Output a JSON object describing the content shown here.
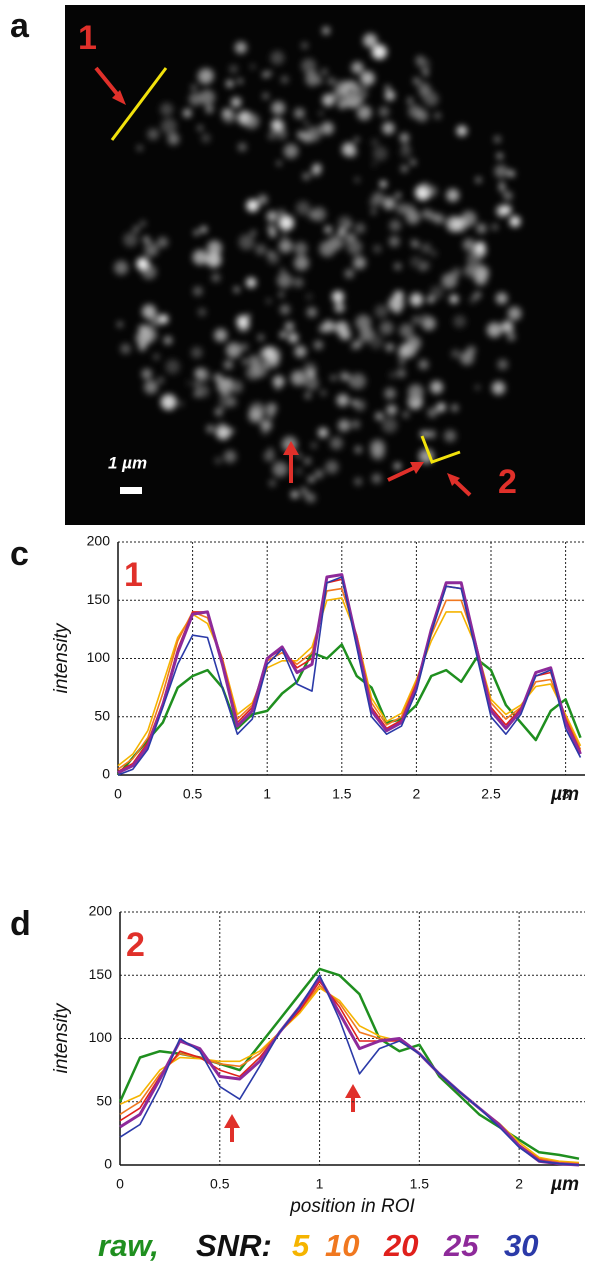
{
  "image": {
    "label": "a",
    "roi_labels": [
      "1",
      "2"
    ],
    "scale_bar": "1 µm"
  },
  "chart_data": [
    {
      "type": "line",
      "panel_label": "c",
      "roi_label": "1",
      "y_label": "intensity",
      "x_unit": "µm",
      "x": [
        0,
        0.1,
        0.2,
        0.3,
        0.4,
        0.5,
        0.6,
        0.7,
        0.8,
        0.9,
        1,
        1.1,
        1.2,
        1.3,
        1.4,
        1.5,
        1.6,
        1.7,
        1.8,
        1.9,
        2,
        2.1,
        2.2,
        2.3,
        2.4,
        2.5,
        2.6,
        2.7,
        2.8,
        2.9,
        3,
        3.1
      ],
      "xlim": [
        0,
        3.13
      ],
      "xticks": [
        0,
        0.5,
        1,
        1.5,
        2,
        2.5,
        3
      ],
      "ylim": [
        0,
        200
      ],
      "yticks": [
        0,
        50,
        100,
        150,
        200
      ],
      "grid": true,
      "series": [
        {
          "name": "raw,",
          "color": "#1f8f1f",
          "values": [
            0,
            15,
            30,
            45,
            75,
            85,
            90,
            75,
            40,
            52,
            55,
            70,
            80,
            105,
            100,
            112,
            85,
            75,
            45,
            48,
            60,
            85,
            90,
            80,
            100,
            90,
            60,
            45,
            30,
            55,
            65,
            32
          ]
        },
        {
          "name": "5",
          "color": "#f5b400",
          "values": [
            8,
            18,
            38,
            78,
            118,
            138,
            130,
            100,
            52,
            62,
            92,
            98,
            98,
            110,
            150,
            152,
            120,
            66,
            46,
            53,
            82,
            115,
            140,
            140,
            110,
            65,
            52,
            60,
            76,
            78,
            52,
            25
          ]
        },
        {
          "name": "10",
          "color": "#f07820",
          "values": [
            5,
            14,
            32,
            70,
            115,
            140,
            135,
            100,
            48,
            60,
            98,
            105,
            95,
            105,
            158,
            160,
            120,
            62,
            43,
            50,
            80,
            120,
            150,
            150,
            112,
            62,
            48,
            58,
            80,
            82,
            50,
            22
          ]
        },
        {
          "name": "20",
          "color": "#e0201c",
          "values": [
            3,
            10,
            28,
            62,
            108,
            140,
            140,
            98,
            45,
            58,
            100,
            108,
            92,
            100,
            165,
            168,
            118,
            58,
            40,
            47,
            78,
            125,
            162,
            160,
            112,
            58,
            43,
            57,
            85,
            88,
            48,
            20
          ]
        },
        {
          "name": "25",
          "color": "#8e2a9a",
          "values": [
            2,
            8,
            25,
            60,
            105,
            138,
            140,
            95,
            42,
            55,
            100,
            110,
            88,
            95,
            170,
            172,
            115,
            55,
            38,
            45,
            75,
            125,
            165,
            165,
            110,
            55,
            40,
            55,
            88,
            92,
            45,
            18
          ]
        },
        {
          "name": "30",
          "color": "#2b3aa8",
          "values": [
            0,
            5,
            22,
            58,
            95,
            120,
            118,
            75,
            35,
            48,
            95,
            108,
            78,
            72,
            165,
            170,
            110,
            50,
            35,
            42,
            72,
            122,
            162,
            160,
            105,
            50,
            35,
            52,
            85,
            90,
            40,
            15
          ]
        }
      ]
    },
    {
      "type": "line",
      "panel_label": "d",
      "roi_label": "2",
      "y_label": "intensity",
      "x_unit": "µm",
      "x_label": "position in ROI",
      "legend_heading": "SNR:",
      "x": [
        0,
        0.1,
        0.2,
        0.3,
        0.4,
        0.5,
        0.6,
        0.7,
        0.8,
        0.9,
        1,
        1.1,
        1.2,
        1.3,
        1.4,
        1.5,
        1.6,
        1.7,
        1.8,
        1.9,
        2,
        2.1,
        2.2,
        2.3
      ],
      "xlim": [
        0,
        2.33
      ],
      "xticks": [
        0,
        0.5,
        1,
        1.5,
        2
      ],
      "ylim": [
        0,
        200
      ],
      "yticks": [
        0,
        50,
        100,
        150,
        200
      ],
      "grid": true,
      "series": [
        {
          "name": "raw,",
          "color": "#1f8f1f",
          "values": [
            50,
            85,
            90,
            88,
            85,
            80,
            75,
            95,
            115,
            135,
            155,
            150,
            135,
            100,
            90,
            95,
            70,
            55,
            40,
            30,
            20,
            10,
            8,
            5
          ]
        },
        {
          "name": "5",
          "color": "#f5b400",
          "values": [
            48,
            55,
            75,
            85,
            84,
            82,
            82,
            90,
            105,
            120,
            140,
            130,
            110,
            102,
            98,
            88,
            72,
            58,
            45,
            33,
            18,
            6,
            3,
            2
          ]
        },
        {
          "name": "10",
          "color": "#f07820",
          "values": [
            40,
            50,
            72,
            88,
            85,
            80,
            78,
            88,
            105,
            122,
            142,
            128,
            105,
            100,
            98,
            88,
            72,
            58,
            45,
            32,
            16,
            5,
            2,
            1
          ]
        },
        {
          "name": "20",
          "color": "#e0201c",
          "values": [
            35,
            45,
            70,
            90,
            85,
            75,
            70,
            85,
            105,
            122,
            145,
            125,
            98,
            98,
            98,
            88,
            72,
            58,
            45,
            32,
            16,
            4,
            1,
            0
          ]
        },
        {
          "name": "25",
          "color": "#8e2a9a",
          "values": [
            30,
            40,
            68,
            98,
            92,
            70,
            68,
            82,
            105,
            125,
            148,
            120,
            92,
            98,
            100,
            88,
            72,
            58,
            45,
            32,
            15,
            3,
            1,
            0
          ]
        },
        {
          "name": "30",
          "color": "#2b3aa8",
          "values": [
            22,
            32,
            62,
            100,
            90,
            62,
            52,
            78,
            105,
            125,
            150,
            115,
            72,
            92,
            98,
            88,
            72,
            58,
            45,
            30,
            14,
            3,
            1,
            0
          ]
        }
      ]
    }
  ]
}
